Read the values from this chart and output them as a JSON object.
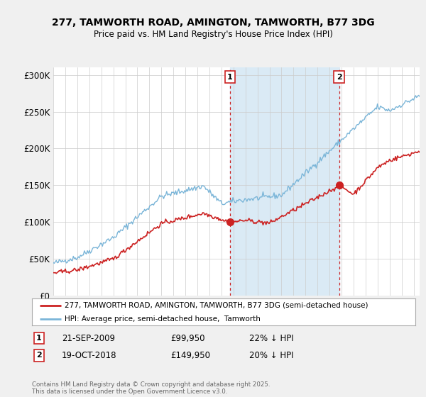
{
  "title": "277, TAMWORTH ROAD, AMINGTON, TAMWORTH, B77 3DG",
  "subtitle": "Price paid vs. HM Land Registry's House Price Index (HPI)",
  "ylim": [
    0,
    310000
  ],
  "yticks": [
    0,
    50000,
    100000,
    150000,
    200000,
    250000,
    300000
  ],
  "ytick_labels": [
    "£0",
    "£50K",
    "£100K",
    "£150K",
    "£200K",
    "£250K",
    "£300K"
  ],
  "background_color": "#f0f0f0",
  "plot_bg_color": "#ffffff",
  "hpi_color": "#7ab5d8",
  "price_color": "#cc2222",
  "shade_color": "#daeaf5",
  "marker1_x": 2009.72,
  "marker2_x": 2018.8,
  "legend_line1": "277, TAMWORTH ROAD, AMINGTON, TAMWORTH, B77 3DG (semi-detached house)",
  "legend_line2": "HPI: Average price, semi-detached house,  Tamworth",
  "note1_label": "1",
  "note1_date": "21-SEP-2009",
  "note1_price": "£99,950",
  "note1_hpi": "22% ↓ HPI",
  "note2_label": "2",
  "note2_date": "19-OCT-2018",
  "note2_price": "£149,950",
  "note2_hpi": "20% ↓ HPI",
  "footer": "Contains HM Land Registry data © Crown copyright and database right 2025.\nThis data is licensed under the Open Government Licence v3.0.",
  "xmin": 1995,
  "xmax": 2025.5,
  "sale1_price": 99950,
  "sale2_price": 149950
}
